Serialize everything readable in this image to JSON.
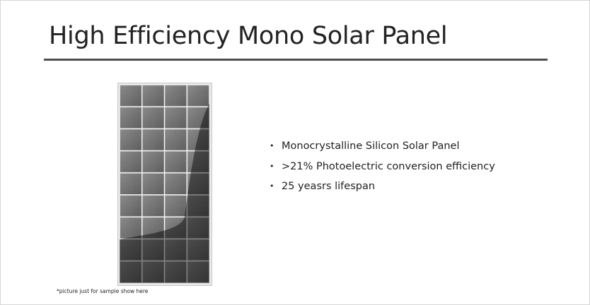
{
  "header": {
    "title": "High Efficiency Mono Solar Panel"
  },
  "bullets": [
    "Monocrystalline Silicon Solar Panel",
    ">21% Photoelectric conversion efficiency",
    "25 yeasrs lifespan"
  ],
  "caption": "*picture just for sample show here"
}
